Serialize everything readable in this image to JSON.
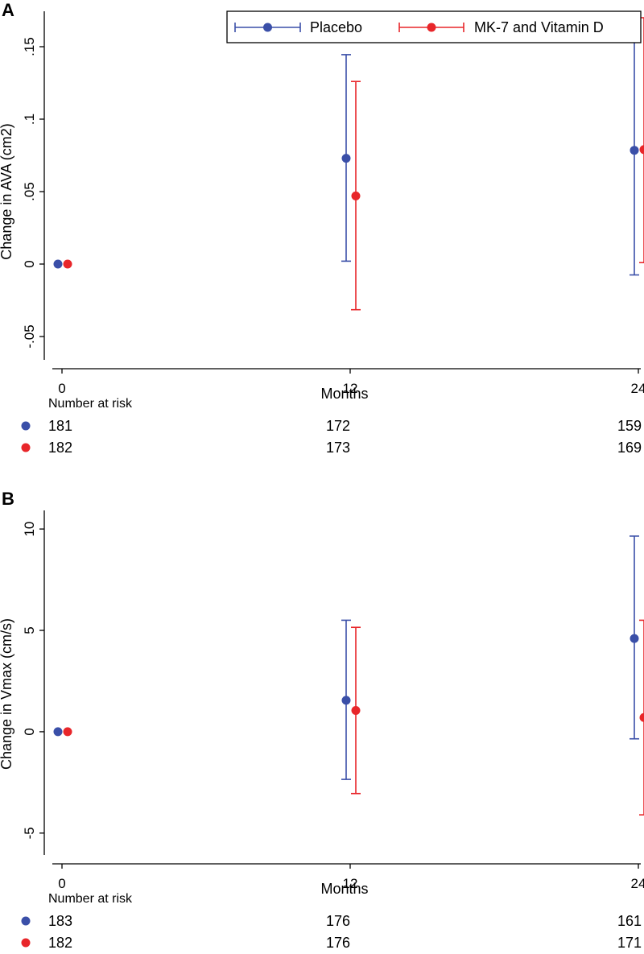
{
  "legend": {
    "items": [
      {
        "label": "Placebo",
        "color": "#3a4fa8"
      },
      {
        "label": "MK-7 and Vitamin D",
        "color": "#e8262a"
      }
    ]
  },
  "chart_data": [
    {
      "panel": "A",
      "type": "scatter",
      "subtype": "point-with-error-bars",
      "xlabel": "Months",
      "ylabel": "Change in AVA (cm2)",
      "x_ticks": [
        0,
        12,
        24
      ],
      "x_tick_labels": [
        "0",
        "12",
        "24"
      ],
      "y_ticks": [
        -0.05,
        0,
        0.05,
        0.1,
        0.15
      ],
      "y_tick_labels": [
        "-.05",
        "0",
        ".05",
        ".1",
        ".15"
      ],
      "ylim": [
        -0.065,
        0.17
      ],
      "series": [
        {
          "name": "Placebo",
          "color": "#3a4fa8",
          "x": [
            0,
            12,
            24
          ],
          "y": [
            0,
            0.073,
            0.0785
          ],
          "lower": [
            null,
            0.002,
            -0.0075
          ],
          "upper": [
            null,
            0.1445,
            0.17
          ]
        },
        {
          "name": "MK-7 and Vitamin D",
          "color": "#e8262a",
          "x": [
            0,
            12,
            24
          ],
          "y": [
            0,
            0.047,
            0.079
          ],
          "lower": [
            null,
            -0.0315,
            0.001
          ],
          "upper": [
            null,
            0.126,
            0.17
          ]
        }
      ],
      "risk_table": {
        "title": "Number at risk",
        "rows": [
          {
            "series": "Placebo",
            "color": "#3a4fa8",
            "values": [
              "181",
              "172",
              "159"
            ]
          },
          {
            "series": "MK-7 and Vitamin D",
            "color": "#e8262a",
            "values": [
              "182",
              "173",
              "169"
            ]
          }
        ]
      }
    },
    {
      "panel": "B",
      "type": "scatter",
      "subtype": "point-with-error-bars",
      "xlabel": "Months",
      "ylabel": "Change in Vmax (cm/s)",
      "x_ticks": [
        0,
        12,
        24
      ],
      "x_tick_labels": [
        "0",
        "12",
        "24"
      ],
      "y_ticks": [
        -5,
        0,
        5,
        10
      ],
      "y_tick_labels": [
        "-5",
        "0",
        "5",
        "10"
      ],
      "ylim": [
        -6.0,
        10.6
      ],
      "series": [
        {
          "name": "Placebo",
          "color": "#3a4fa8",
          "x": [
            0,
            12,
            24
          ],
          "y": [
            0,
            1.55,
            4.6
          ],
          "lower": [
            null,
            -2.35,
            -0.35
          ],
          "upper": [
            null,
            5.5,
            9.65
          ]
        },
        {
          "name": "MK-7 and Vitamin D",
          "color": "#e8262a",
          "x": [
            0,
            12,
            24
          ],
          "y": [
            0,
            1.05,
            0.7
          ],
          "lower": [
            null,
            -3.05,
            -4.1
          ],
          "upper": [
            null,
            5.15,
            5.5
          ]
        }
      ],
      "risk_table": {
        "title": "Number at risk",
        "rows": [
          {
            "series": "Placebo",
            "color": "#3a4fa8",
            "values": [
              "183",
              "176",
              "161"
            ]
          },
          {
            "series": "MK-7 and Vitamin D",
            "color": "#e8262a",
            "values": [
              "182",
              "176",
              "171"
            ]
          }
        ]
      }
    }
  ]
}
